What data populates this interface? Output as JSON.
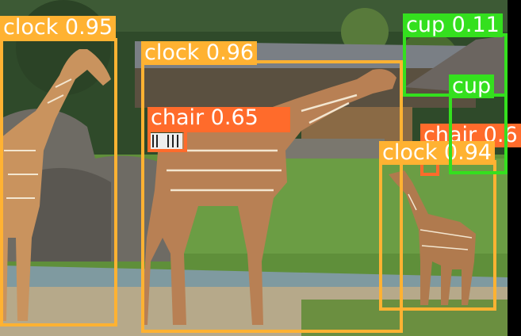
{
  "image": {
    "description_free": true
  },
  "detections": [
    {
      "id": "d1",
      "label": "clock 0.95",
      "color": "#FFB232"
    },
    {
      "id": "d2",
      "label": "clock 0.96",
      "color": "#FFB232"
    },
    {
      "id": "d3",
      "label": "chair 0.65",
      "color": "#FF6B2B"
    },
    {
      "id": "d4",
      "label": "chair 0.6",
      "color": "#FF6B2B"
    },
    {
      "id": "d5",
      "label": "clock 0.94",
      "color": "#FFB232"
    },
    {
      "id": "d6",
      "label": "cup 0.11",
      "color": "#34E01E"
    },
    {
      "id": "d7",
      "label": "cup",
      "color": "#34E01E"
    }
  ]
}
